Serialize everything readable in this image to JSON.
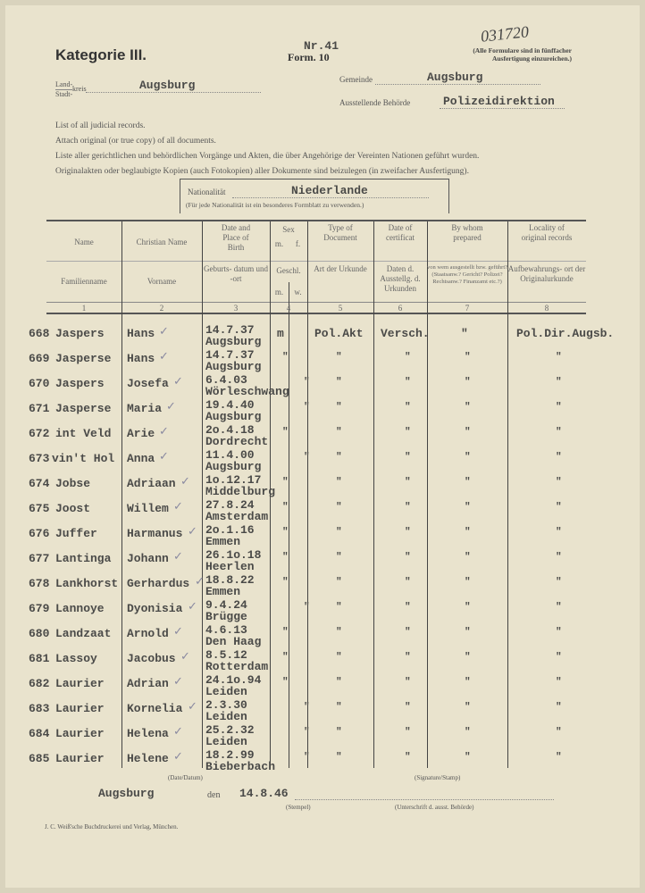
{
  "header": {
    "category": "Kategorie III.",
    "number": "Nr.41",
    "form": "Form. 10",
    "handwritten_ref": "031720",
    "note_line1": "(Alle Formulare sind in fünffacher",
    "note_line2": "Ausfertigung einzureichen.)",
    "land_label": "Land-",
    "stadt_label": "Stadt-",
    "kreis_label": "kreis",
    "kreis_value": "Augsburg",
    "gemeinde_label": "Gemeinde",
    "gemeinde_value": "Augsburg",
    "behoerde_label": "Ausstellende Behörde",
    "behoerde_value": "Polizeidirektion"
  },
  "instructions": [
    "List of all judicial records.",
    "Attach original (or true copy) of all documents.",
    "Liste aller gerichtlichen und behördlichen Vorgänge und Akten, die über Angehörige der Vereinten Nationen geführt wurden.",
    "Originalakten oder beglaubigte Kopien (auch Fotokopien) aller Dokumente sind beizulegen (in zweifacher Ausfertigung)."
  ],
  "nationality": {
    "label": "Nationalität",
    "value": "Niederlande",
    "note": "(Für jede Nationalität ist ein besonderes Formblatt zu verwenden.)"
  },
  "columns": [
    {
      "en": "Name",
      "de": "Familienname",
      "num": "1"
    },
    {
      "en": "Christian Name",
      "de": "Vorname",
      "num": "2"
    },
    {
      "en": "Date and Place of Birth",
      "de": "Geburts- datum und -ort",
      "num": "3"
    },
    {
      "en": "Sex",
      "de": "Geschl.",
      "num": "4",
      "sub_en": [
        "m.",
        "f."
      ],
      "sub_de": [
        "m.",
        "w."
      ]
    },
    {
      "en": "Type of Document",
      "de": "Art der Urkunde",
      "num": "5"
    },
    {
      "en": "Date of certificat",
      "de": "Daten d. Ausstellg. d. Urkunden",
      "num": "6"
    },
    {
      "en": "By whom prepared",
      "de": "von wem ausgestellt bzw. geführt? (Staatsanw.? Gericht? Polizei? Rechtsanw.? Finanzamt etc.?)",
      "num": "7"
    },
    {
      "en": "Locality of original records",
      "de": "Aufbewahrungs- ort der Originalurkunde",
      "num": "8"
    }
  ],
  "ditto": "\"",
  "rows": [
    {
      "no": "668",
      "surname": "Jaspers",
      "given": "Hans",
      "date": "14.7.37",
      "place": "Augsburg",
      "sex": "m",
      "type": "Pol.Akt",
      "cert": "Versch.",
      "by": "\"",
      "locality": "Pol.Dir.Augsb."
    },
    {
      "no": "669",
      "surname": "Jasperse",
      "given": "Hans",
      "date": "14.7.37",
      "place": "Augsburg",
      "sex": "m"
    },
    {
      "no": "670",
      "surname": "Jaspers",
      "given": "Josefa",
      "date": "6.4.03",
      "place": "Wörleschwang",
      "sex": "f"
    },
    {
      "no": "671",
      "surname": "Jasperse",
      "given": "Maria",
      "date": "19.4.40",
      "place": "Augsburg",
      "sex": "f"
    },
    {
      "no": "672",
      "surname": "int Veld",
      "given": "Arie",
      "date": "2o.4.18",
      "place": "Dordrecht",
      "sex": "m"
    },
    {
      "no": "673",
      "surname": "vin't Hol",
      "given": "Anna",
      "date": "11.4.00",
      "place": "Augsburg",
      "sex": "f"
    },
    {
      "no": "674",
      "surname": "Jobse",
      "given": "Adriaan",
      "date": "1o.12.17",
      "place": "Middelburg",
      "sex": "m"
    },
    {
      "no": "675",
      "surname": "Joost",
      "given": "Willem",
      "date": "27.8.24",
      "place": "Amsterdam",
      "sex": "m"
    },
    {
      "no": "676",
      "surname": "Juffer",
      "given": "Harmanus",
      "date": "2o.1.16",
      "place": "Emmen",
      "sex": "m"
    },
    {
      "no": "677",
      "surname": "Lantinga",
      "given": "Johann",
      "date": "26.1o.18",
      "place": "Heerlen",
      "sex": "m"
    },
    {
      "no": "678",
      "surname": "Lankhorst",
      "given": "Gerhardus",
      "date": "18.8.22",
      "place": "Emmen",
      "sex": "m"
    },
    {
      "no": "679",
      "surname": "Lannoye",
      "given": "Dyonisia",
      "date": "9.4.24",
      "place": "Brügge",
      "sex": "f"
    },
    {
      "no": "680",
      "surname": "Landzaat",
      "given": "Arnold",
      "date": "4.6.13",
      "place": "Den Haag",
      "sex": "m"
    },
    {
      "no": "681",
      "surname": "Lassoy",
      "given": "Jacobus",
      "date": "8.5.12",
      "place": "Rotterdam",
      "sex": "m"
    },
    {
      "no": "682",
      "surname": "Laurier",
      "given": "Adrian",
      "date": "24.1o.94",
      "place": "Leiden",
      "sex": "m"
    },
    {
      "no": "683",
      "surname": "Laurier",
      "given": "Kornelia",
      "date": "2.3.30",
      "place": "Leiden",
      "sex": "f"
    },
    {
      "no": "684",
      "surname": "Laurier",
      "given": "Helena",
      "date": "25.2.32",
      "place": "Leiden",
      "sex": "f"
    },
    {
      "no": "685",
      "surname": "Laurier",
      "given": "Helene",
      "date": "18.2.99",
      "place": "Bieberbach",
      "sex": "f"
    }
  ],
  "footer": {
    "date_label": "(Date/Datum)",
    "signature_label": "(Signature/Stamp)",
    "place": "Augsburg",
    "den": "den",
    "date": "14.8.46",
    "stempel": "(Stempel)",
    "unterschrift": "(Unterschrift d. ausst. Behörde)",
    "printer": "J. C. Weiß'sche Buchdruckerei und Verlag, München."
  }
}
